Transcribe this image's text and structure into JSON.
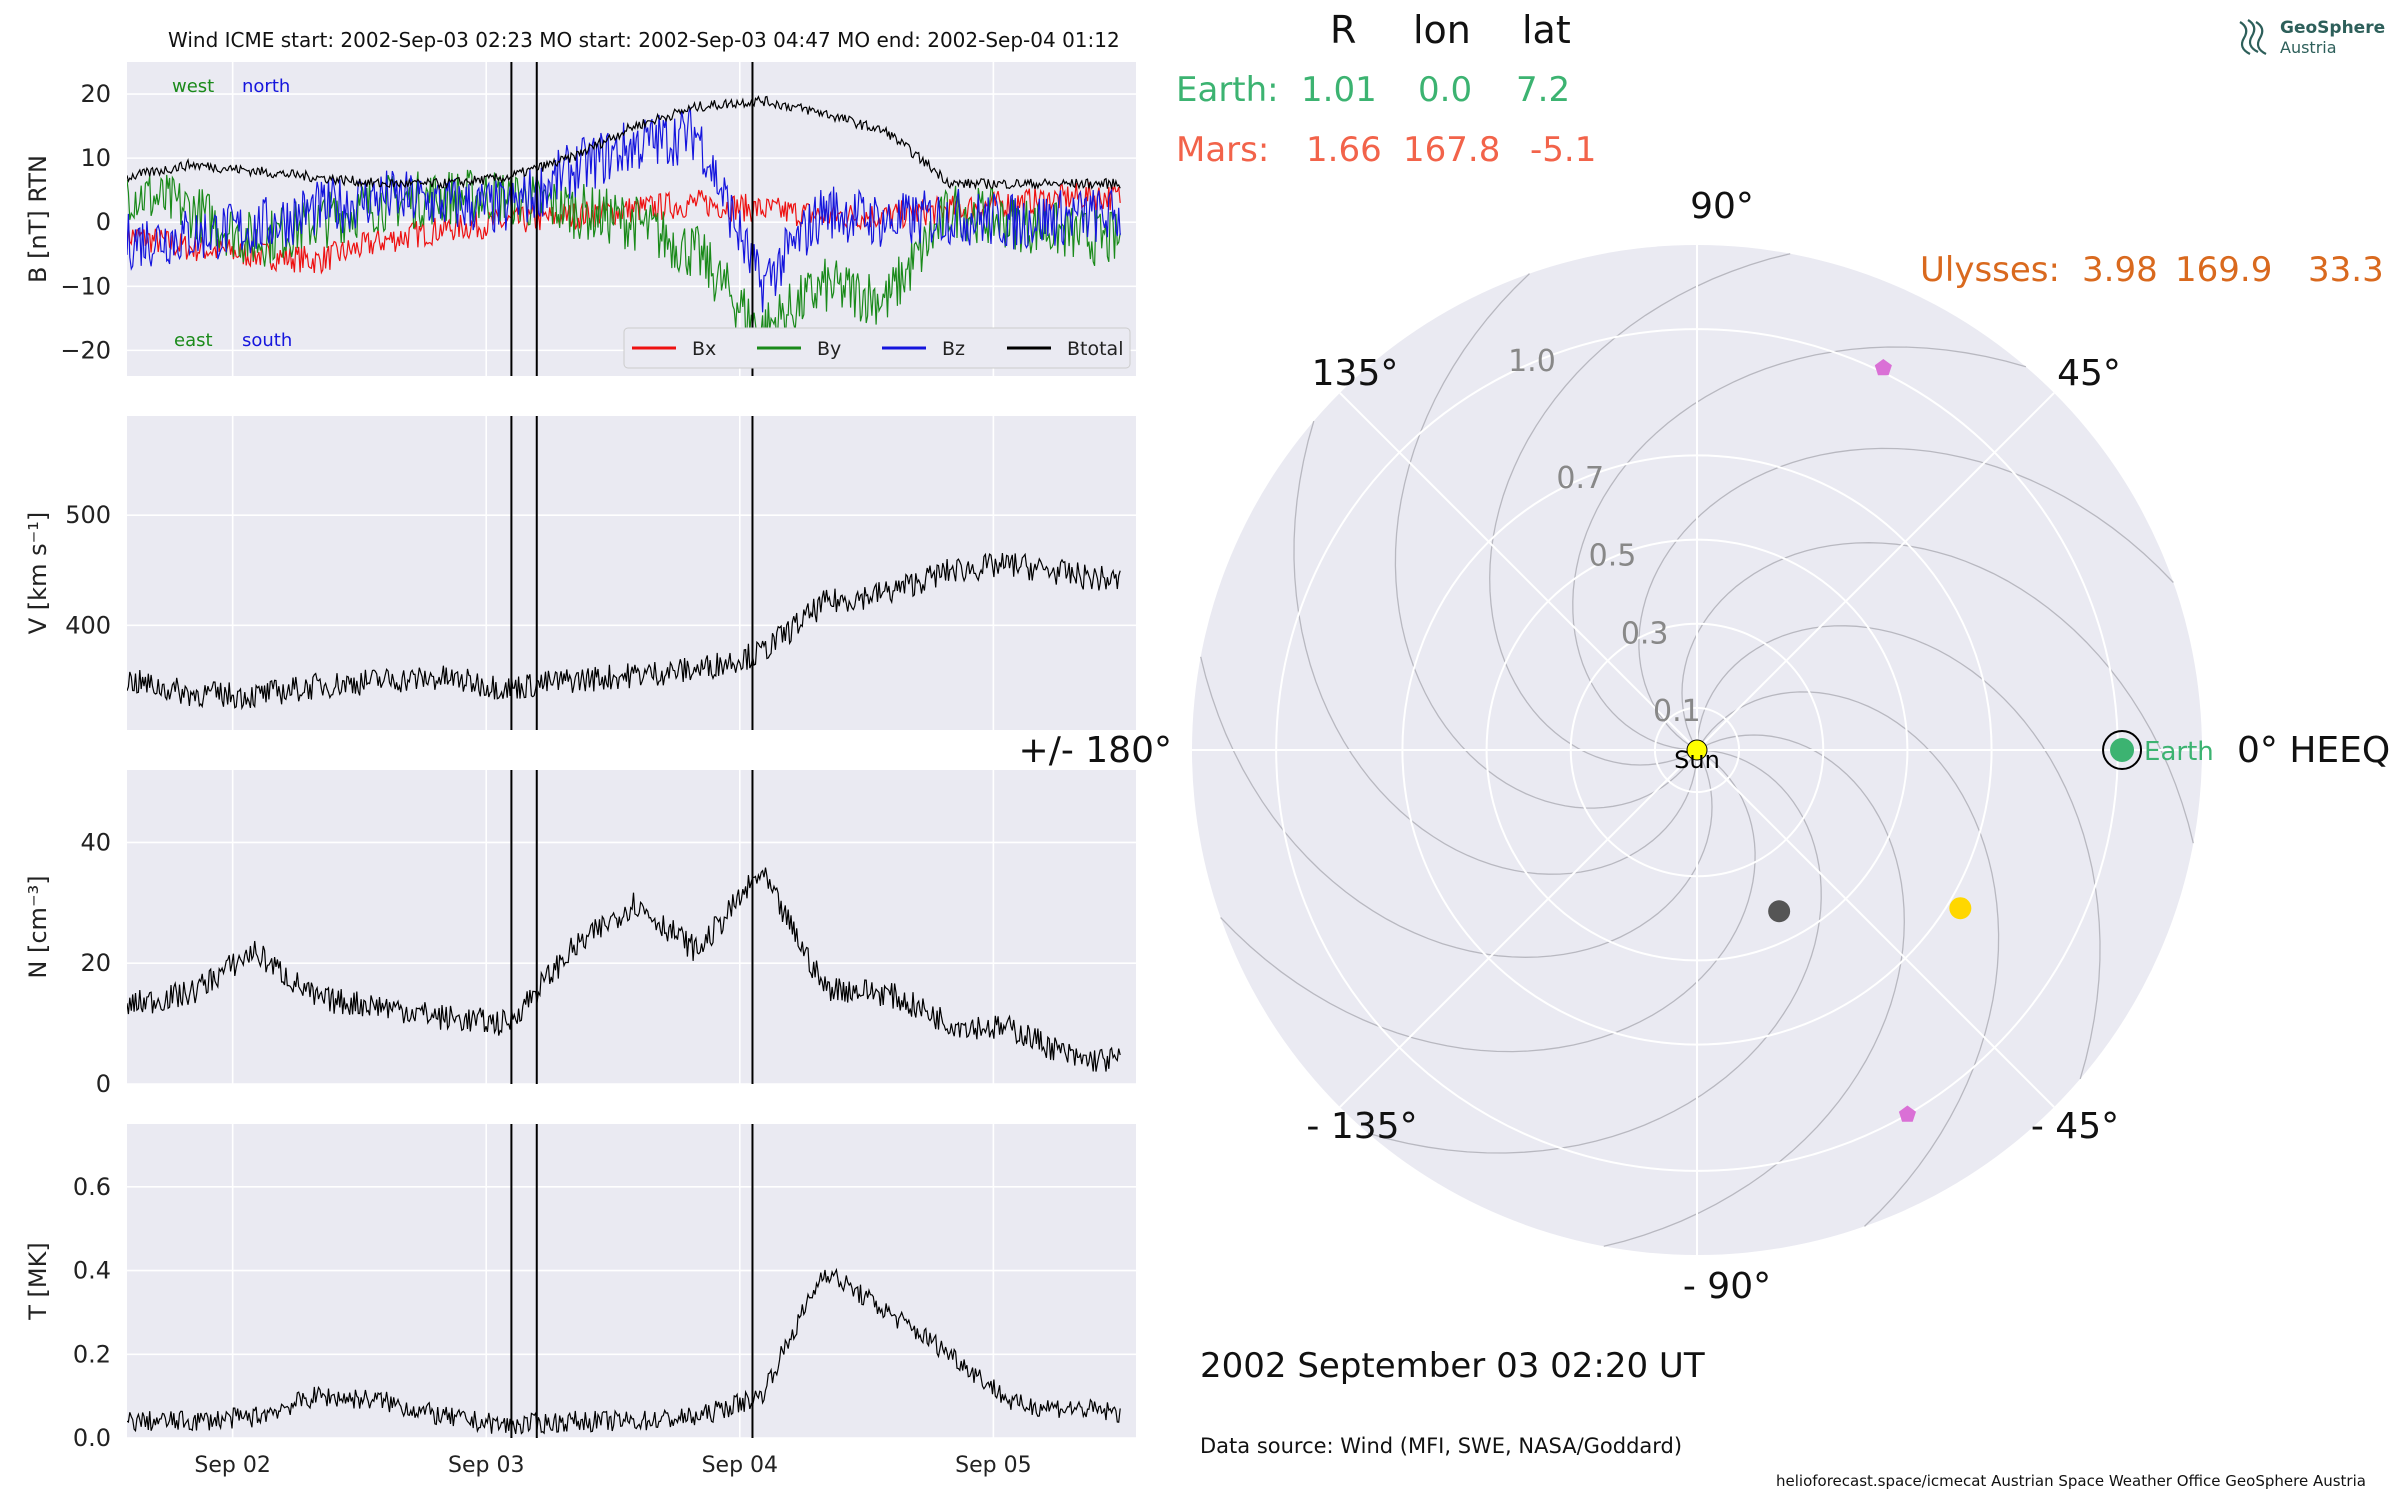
{
  "header": {
    "line": "Wind    ICME start: 2002-Sep-03 02:23   MO start: 2002-Sep-03 04:47   MO end: 2002-Sep-04 01:12"
  },
  "logo": {
    "line1": "GeoSphere",
    "line2": "Austria"
  },
  "positions": {
    "columns": [
      "R",
      "lon",
      "lat"
    ],
    "earth": {
      "label": "Earth:",
      "R": "1.01",
      "lon": "0.0",
      "lat": "7.2",
      "color": "#3cb371"
    },
    "mars": {
      "label": "Mars:",
      "R": "1.66",
      "lon": "167.8",
      "lat": "-5.1",
      "color": "#f2634a"
    },
    "ulysses": {
      "label": "Ulysses:",
      "R": "3.98",
      "lon": "169.9",
      "lat": "33.3",
      "color": "#d9691e"
    }
  },
  "date_label": "2002 September 03  02:20 UT",
  "data_source": "Data source: Wind (MFI, SWE, NASA/Goddard)",
  "footer": "helioforecast.space/icmecat   Austrian Space Weather Office   GeoSphere Austria",
  "colors": {
    "panel_bg": "#eaeaf2",
    "grid": "#ffffff",
    "Bx": "#ee1111",
    "By": "#1a8a1a",
    "Bz": "#1515dd",
    "Btotal": "#000000"
  },
  "chart_data": [
    {
      "type": "line",
      "title": "Wind    ICME start: 2002-Sep-03 02:23   MO start: 2002-Sep-03 04:47   MO end: 2002-Sep-04 01:12",
      "ylabel": "B [nT] RTN",
      "ylim": [
        -24,
        25
      ],
      "yticks": [
        20,
        10,
        0,
        -10,
        -20
      ],
      "ytick_labels": [
        "20",
        "10",
        "0",
        "−10",
        "−20"
      ],
      "xlim": [
        "2002-09-01T14:00",
        "2002-09-05T13:30"
      ],
      "corner_labels": [
        "west",
        "north",
        "east",
        "south"
      ],
      "legend": "lower-right",
      "vertical_lines": [
        "2002-09-03 02:23",
        "2002-09-03 04:47",
        "2002-09-04 01:12"
      ],
      "series": [
        {
          "name": "Bx",
          "x": [
            0,
            6,
            12,
            18,
            24,
            30,
            36,
            42,
            48,
            54,
            60,
            66,
            72,
            78,
            84,
            90,
            94
          ],
          "y": [
            -2,
            -4,
            -5,
            -6,
            -3,
            -1,
            0,
            1,
            2,
            3,
            2,
            1,
            1,
            2,
            3,
            4,
            4
          ]
        },
        {
          "name": "By",
          "x": [
            0,
            6,
            12,
            18,
            24,
            30,
            36,
            42,
            48,
            54,
            60,
            66,
            72,
            78,
            84,
            90,
            94
          ],
          "y": [
            5,
            2,
            -3,
            0,
            3,
            4,
            4,
            2,
            0,
            -5,
            -17,
            -10,
            -12,
            2,
            0,
            -2,
            -3
          ]
        },
        {
          "name": "Bz",
          "x": [
            0,
            6,
            12,
            18,
            24,
            30,
            36,
            42,
            48,
            54,
            60,
            66,
            72,
            78,
            84,
            90,
            94
          ],
          "y": [
            -3,
            -2,
            -1,
            2,
            4,
            3,
            2,
            8,
            12,
            14,
            -10,
            2,
            0,
            1,
            0,
            1,
            1
          ]
        },
        {
          "name": "Btotal",
          "x": [
            0,
            6,
            12,
            18,
            24,
            30,
            36,
            42,
            48,
            54,
            60,
            66,
            72,
            78,
            84,
            90,
            94
          ],
          "y": [
            7,
            9,
            8,
            7,
            6,
            6,
            7,
            10,
            15,
            18,
            19,
            17,
            14,
            6,
            6,
            6,
            6
          ]
        }
      ]
    },
    {
      "type": "line",
      "ylabel": "V [km s⁻¹]",
      "ylim": [
        305,
        590
      ],
      "yticks": [
        500,
        400
      ],
      "ytick_labels": [
        "500",
        "400"
      ],
      "vertical_lines": [
        "2002-09-03 02:23",
        "2002-09-03 04:47",
        "2002-09-04 01:12"
      ],
      "series": [
        {
          "name": "",
          "x": [
            0,
            6,
            12,
            18,
            24,
            30,
            36,
            42,
            48,
            54,
            60,
            66,
            72,
            78,
            84,
            90,
            94
          ],
          "y": [
            350,
            338,
            336,
            345,
            350,
            352,
            343,
            350,
            355,
            360,
            375,
            420,
            430,
            450,
            455,
            445,
            440
          ]
        }
      ]
    },
    {
      "type": "line",
      "ylabel": "N [cm⁻³]",
      "ylim": [
        0,
        52
      ],
      "yticks": [
        40,
        20,
        0
      ],
      "ytick_labels": [
        "40",
        "20",
        "0"
      ],
      "vertical_lines": [
        "2002-09-03 02:23",
        "2002-09-03 04:47",
        "2002-09-04 01:12"
      ],
      "series": [
        {
          "name": "",
          "x": [
            0,
            6,
            12,
            18,
            24,
            30,
            36,
            42,
            48,
            54,
            60,
            66,
            72,
            78,
            84,
            90,
            94
          ],
          "y": [
            13,
            15,
            22,
            14,
            13,
            11,
            10,
            22,
            30,
            22,
            35,
            16,
            15,
            10,
            9,
            4,
            4
          ]
        }
      ]
    },
    {
      "type": "line",
      "ylabel": "T [MK]",
      "ylim": [
        0,
        0.75
      ],
      "yticks": [
        0.6,
        0.4,
        0.2,
        0.0
      ],
      "ytick_labels": [
        "0.6",
        "0.4",
        "0.2",
        "0.0"
      ],
      "xtick_labels": [
        "Sep 02",
        "Sep 03",
        "Sep 04",
        "Sep 05"
      ],
      "vertical_lines": [
        "2002-09-03 02:23",
        "2002-09-03 04:47",
        "2002-09-04 01:12"
      ],
      "series": [
        {
          "name": "",
          "x": [
            0,
            6,
            12,
            18,
            24,
            30,
            36,
            42,
            48,
            54,
            60,
            66,
            72,
            78,
            84,
            90,
            94
          ],
          "y": [
            0.04,
            0.04,
            0.05,
            0.1,
            0.09,
            0.05,
            0.03,
            0.04,
            0.04,
            0.05,
            0.1,
            0.4,
            0.3,
            0.2,
            0.08,
            0.07,
            0.06
          ]
        }
      ]
    },
    {
      "type": "scatter",
      "subtype": "polar",
      "radial_ticks": [
        "0.1",
        "0.3",
        "0.5",
        "0.7",
        "1.0"
      ],
      "radial_values": [
        0.1,
        0.3,
        0.5,
        0.7,
        1.0
      ],
      "angle_labels": [
        "0° HEEQ",
        "45°",
        "90°",
        "135°",
        "+/- 180°",
        "- 135°",
        "- 90°",
        "- 45°"
      ],
      "points": [
        {
          "name": "Sun",
          "r": 0.0,
          "theta": 0,
          "color": "#ffff00",
          "marker": "circle"
        },
        {
          "name": "Earth",
          "r": 1.01,
          "theta": 0,
          "color": "#3cb371",
          "marker": "circle"
        },
        {
          "name": "",
          "r": 0.73,
          "theta": -31,
          "color": "#ffd700",
          "marker": "circle"
        },
        {
          "name": "",
          "r": 0.43,
          "theta": -63,
          "color": "#555555",
          "marker": "circle"
        },
        {
          "name": "",
          "r": 1.01,
          "theta": 64,
          "color": "#da70d6",
          "marker": "pentagon"
        },
        {
          "name": "",
          "r": 1.0,
          "theta": -60,
          "color": "#da70d6",
          "marker": "pentagon"
        }
      ]
    }
  ]
}
